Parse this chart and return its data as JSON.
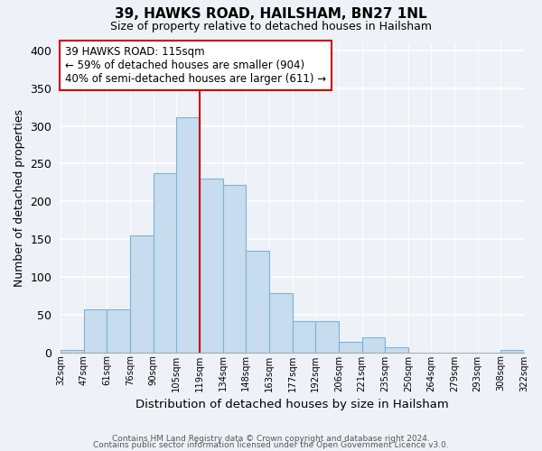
{
  "title": "39, HAWKS ROAD, HAILSHAM, BN27 1NL",
  "subtitle": "Size of property relative to detached houses in Hailsham",
  "xlabel": "Distribution of detached houses by size in Hailsham",
  "ylabel": "Number of detached properties",
  "bar_labels": [
    "32sqm",
    "47sqm",
    "61sqm",
    "76sqm",
    "90sqm",
    "105sqm",
    "119sqm",
    "134sqm",
    "148sqm",
    "163sqm",
    "177sqm",
    "192sqm",
    "206sqm",
    "221sqm",
    "235sqm",
    "250sqm",
    "264sqm",
    "279sqm",
    "293sqm",
    "308sqm",
    "322sqm"
  ],
  "bar_values": [
    3,
    57,
    57,
    155,
    237,
    311,
    230,
    222,
    135,
    78,
    41,
    41,
    14,
    20,
    7,
    0,
    0,
    0,
    0,
    3
  ],
  "bar_color": "#c8dcef",
  "bar_edge_color": "#7ab3d6",
  "vline_x": 6,
  "vline_color": "#cc0000",
  "ylim": [
    0,
    410
  ],
  "yticks": [
    0,
    50,
    100,
    150,
    200,
    250,
    300,
    350,
    400
  ],
  "annotation_text": "39 HAWKS ROAD: 115sqm\n← 59% of detached houses are smaller (904)\n40% of semi-detached houses are larger (611) →",
  "annotation_box_edge_color": "#cc0000",
  "annotation_box_face_color": "#ffffff",
  "footer_line1": "Contains HM Land Registry data © Crown copyright and database right 2024.",
  "footer_line2": "Contains public sector information licensed under the Open Government Licence v3.0.",
  "background_color": "#eef2f8"
}
